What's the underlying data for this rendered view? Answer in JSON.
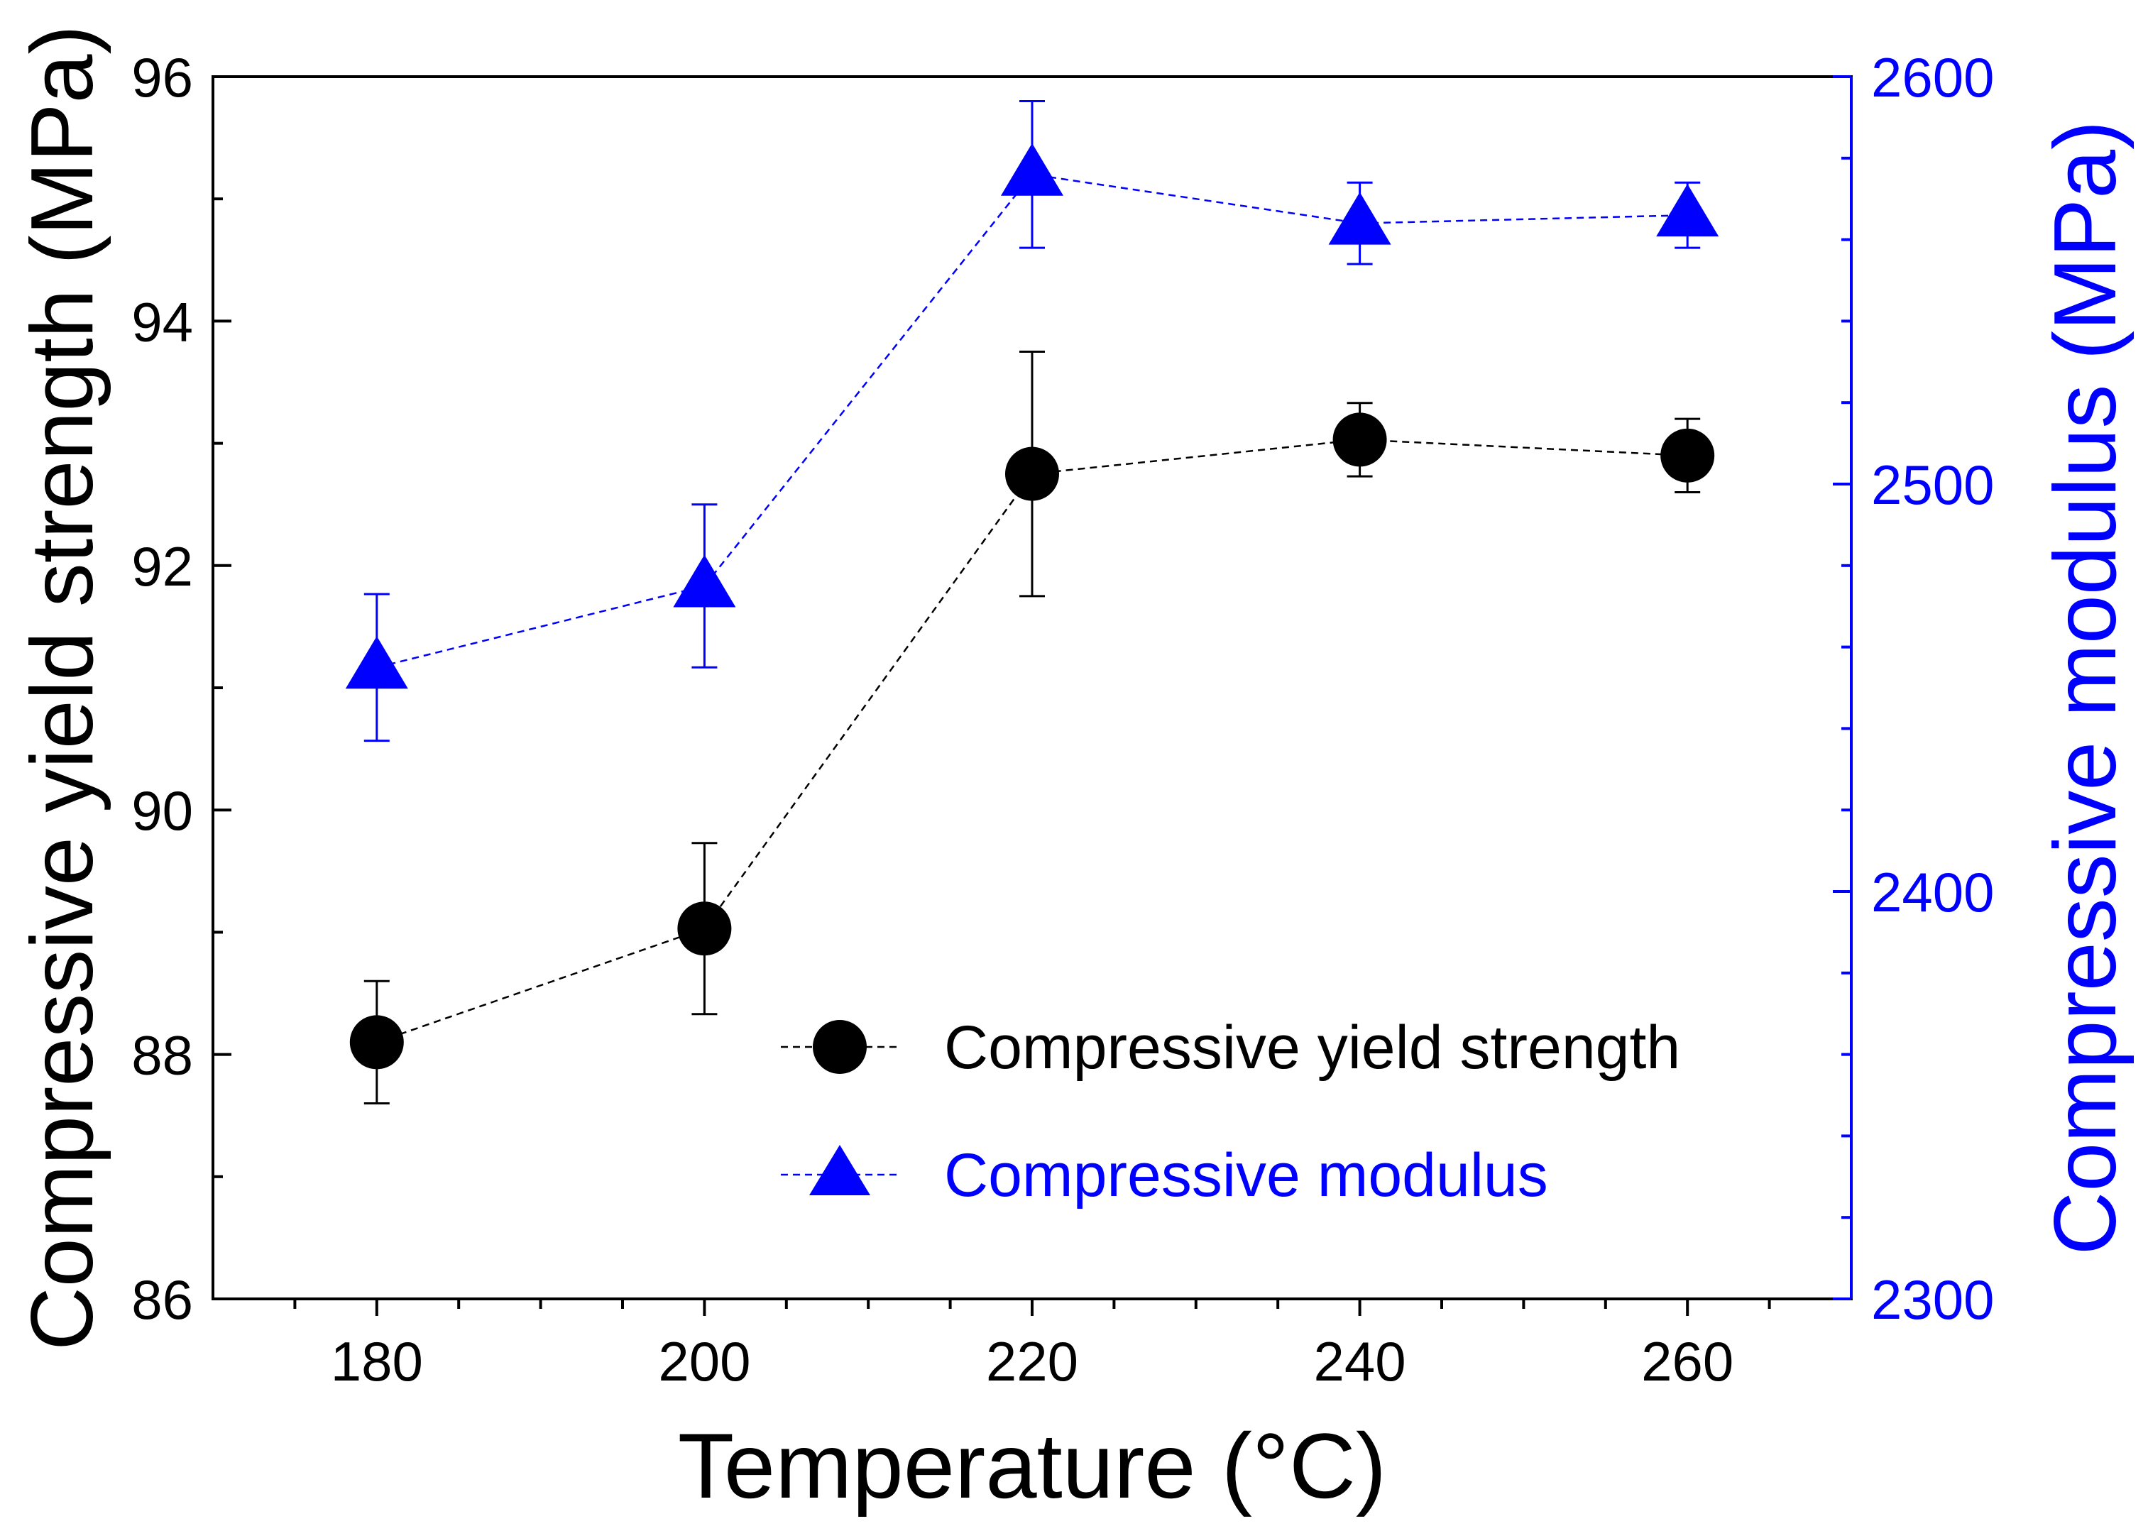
{
  "chart_data": {
    "type": "scatter",
    "x": [
      180,
      200,
      220,
      240,
      260
    ],
    "xlabel": "Temperature (°C)",
    "xlim": [
      170,
      270
    ],
    "xticks": [
      "180",
      "200",
      "220",
      "240",
      "260"
    ],
    "ylabel_left": "Compressive yield strength (MPa)",
    "ylim_left": [
      86,
      96
    ],
    "yticks_left": [
      "86",
      "88",
      "90",
      "92",
      "94",
      "96"
    ],
    "ylabel_right": "Compressive modulus (MPa)",
    "ylim_right": [
      2300,
      2600
    ],
    "yticks_right": [
      "2300",
      "2400",
      "2500",
      "2600"
    ],
    "legend_position": "lower-right",
    "series": [
      {
        "name": "Compressive yield strength",
        "axis": "left",
        "marker": "circle",
        "color": "#000000",
        "values": [
          88.1,
          89.03,
          92.75,
          93.03,
          92.9
        ],
        "errors": [
          0.5,
          0.7,
          1.0,
          0.3,
          0.3
        ]
      },
      {
        "name": "Compressive modulus",
        "axis": "right",
        "marker": "triangle",
        "color": "#0000ff",
        "values": [
          2455,
          2475,
          2576,
          2564,
          2566
        ],
        "errors": [
          18,
          20,
          18,
          10,
          8
        ]
      }
    ]
  }
}
